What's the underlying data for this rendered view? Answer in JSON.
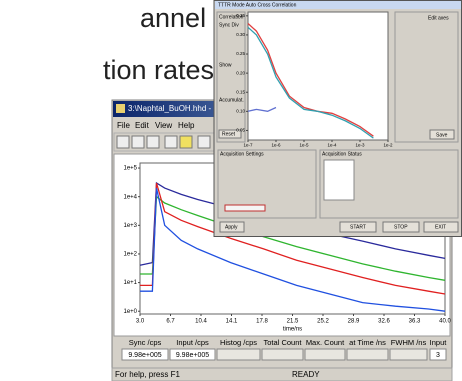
{
  "heading_lines": [
    "annel",
    "tion rates"
  ],
  "main_window": {
    "title": "3:\\Naphtal_BuOH.hhd - HydraHarp",
    "menu": [
      "File",
      "Edit",
      "View",
      "Help"
    ],
    "chart_data": {
      "type": "line",
      "log_y": true,
      "x_label": "time/ns",
      "x": [
        3,
        4.5,
        5,
        6,
        8,
        10,
        14,
        18,
        22,
        26,
        30,
        34,
        38,
        40
      ],
      "series": [
        {
          "color": "#2a2a9c",
          "values": [
            40,
            50,
            30000,
            20000,
            12000,
            8000,
            4000,
            2000,
            1000,
            500,
            280,
            150,
            90,
            70
          ]
        },
        {
          "color": "#2fb52f",
          "values": [
            20,
            20,
            10000,
            6000,
            3500,
            2200,
            900,
            400,
            180,
            90,
            45,
            25,
            15,
            12
          ]
        },
        {
          "color": "#e02020",
          "values": [
            8,
            8,
            30000,
            3000,
            1500,
            900,
            350,
            150,
            60,
            30,
            15,
            8,
            5,
            4
          ]
        },
        {
          "color": "#2050e0",
          "values": [
            5,
            5,
            20000,
            1000,
            300,
            150,
            50,
            20,
            8,
            4,
            2,
            1.5,
            1.2,
            1
          ]
        }
      ],
      "xlim": [
        3,
        40
      ],
      "xticks": [
        {
          "value": 3,
          "label": "3.0"
        },
        6.7,
        10.4,
        14.1,
        17.8,
        21.5,
        25.2,
        28.9,
        32.6,
        36.3,
        {
          "value": 40,
          "label": "40.0"
        }
      ],
      "ylim": [
        0.8,
        150000
      ],
      "yticks": [
        {
          "value": 100000,
          "label": "1e+5"
        },
        {
          "value": 10000,
          "label": "1e+4"
        },
        {
          "value": 1000,
          "label": "1e+3"
        },
        {
          "value": 100,
          "label": "1e+2"
        },
        {
          "value": 10,
          "label": "1e+1"
        },
        {
          "value": 1,
          "label": "1e+0"
        }
      ]
    },
    "status_fields": [
      {
        "label": "Sync /cps",
        "value": "9.98e+005"
      },
      {
        "label": "Input /cps",
        "value": "9.98e+005"
      },
      {
        "label": "Histog /cps"
      },
      {
        "label": "Total Count"
      },
      {
        "label": "Max. Count"
      },
      {
        "label": "at Time /ns"
      },
      {
        "label": "FWHM /ns"
      },
      {
        "label": "Input",
        "value": "3"
      }
    ],
    "status_bar": [
      "For help, press F1",
      "READY"
    ]
  },
  "inset_window": {
    "title": "TTTR Mode Auto Cross Correlation",
    "left_panel": [
      "Correlation",
      "Sync Div",
      "Show",
      "Accumulat.",
      "Reset"
    ],
    "right_panel": [
      "Edit axes",
      "Save"
    ],
    "chart_data": {
      "type": "line",
      "log_x": true,
      "series": [
        {
          "color": "#e04040",
          "x": [
            1e-07,
            2e-07,
            5e-07,
            1e-06,
            3e-06,
            1e-05,
            3e-05,
            0.0001,
            0.0003,
            0.001,
            0.003
          ],
          "values": [
            0.33,
            0.31,
            0.26,
            0.2,
            0.14,
            0.11,
            0.1,
            0.095,
            0.08,
            0.06,
            0.035
          ]
        },
        {
          "color": "#30a0b0",
          "x": [
            1e-07,
            2e-07,
            5e-07,
            1e-06,
            3e-06,
            1e-05,
            3e-05,
            0.0001,
            0.0003,
            0.001,
            0.003
          ],
          "values": [
            0.32,
            0.3,
            0.25,
            0.19,
            0.135,
            0.105,
            0.1,
            0.09,
            0.075,
            0.055,
            0.03
          ]
        },
        {
          "color": "#6070d0",
          "x": [
            1e-07,
            2e-07,
            5e-07,
            1e-06
          ],
          "values": [
            0.1,
            0.105,
            0.1,
            0.11
          ]
        }
      ],
      "xlim": [
        1e-07,
        0.01
      ],
      "xticks": [
        {
          "value": 1e-07,
          "label": "1e-7"
        },
        {
          "value": 1e-06,
          "label": "1e-6"
        },
        {
          "value": 1e-05,
          "label": "1e-5"
        },
        {
          "value": 0.0001,
          "label": "1e-4"
        },
        {
          "value": 0.001,
          "label": "1e-3"
        },
        {
          "value": 0.01,
          "label": "1e-2"
        }
      ],
      "ylim": [
        0.025,
        0.36
      ],
      "yticks": [
        0.35,
        {
          "value": 0.3,
          "label": "0.30"
        },
        0.25,
        {
          "value": 0.2,
          "label": "0.20"
        },
        0.15,
        {
          "value": 0.1,
          "label": "0.10"
        },
        0.05
      ]
    },
    "panels": [
      "Acquisition Settings",
      "Acquisition Status"
    ],
    "buttons": [
      "Apply",
      "START",
      "STOP",
      "EXIT"
    ]
  }
}
